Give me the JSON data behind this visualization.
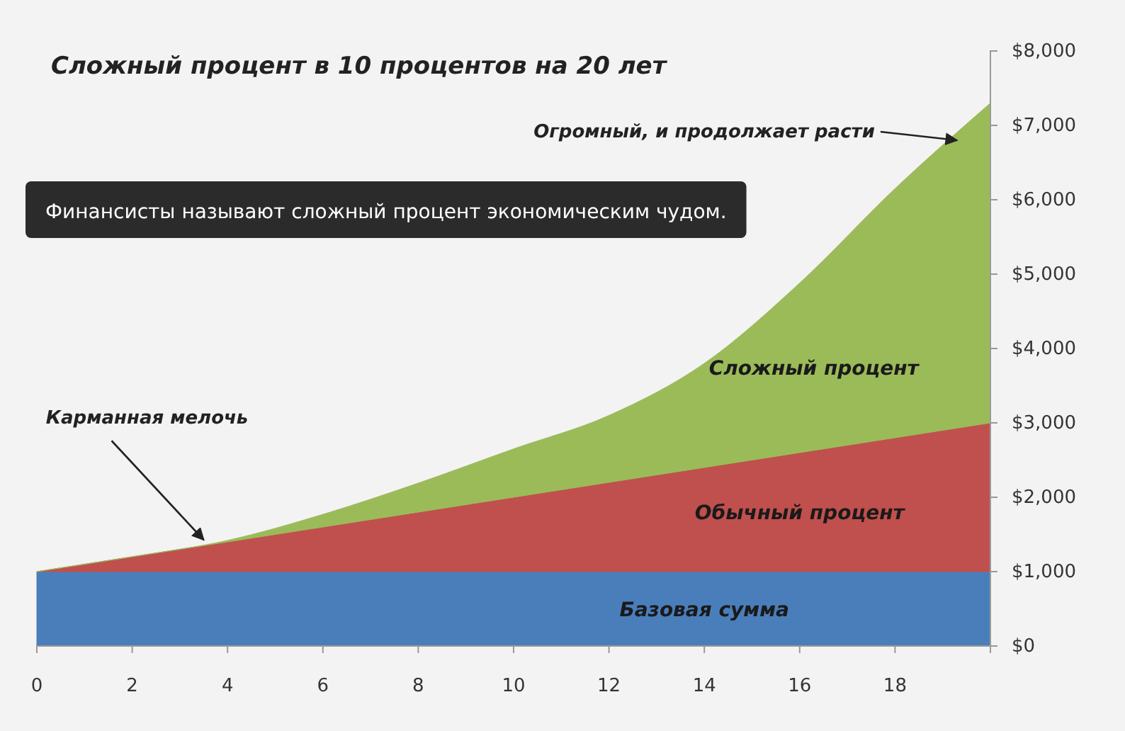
{
  "chart_data": {
    "type": "area",
    "stacked": true,
    "title": "Сложный процент в 10 процентов на 20 лет",
    "x": [
      0,
      2,
      4,
      6,
      8,
      10,
      12,
      14,
      16,
      18,
      20
    ],
    "series": [
      {
        "name": "Базовая сумма",
        "color": "#4a7ebb",
        "values": [
          1000,
          1000,
          1000,
          1000,
          1000,
          1000,
          1000,
          1000,
          1000,
          1000,
          1000
        ]
      },
      {
        "name": "Обычный процент",
        "color": "#c0504d",
        "values": [
          0,
          200,
          400,
          600,
          800,
          1000,
          1200,
          1400,
          1600,
          1800,
          2000
        ]
      },
      {
        "name": "Сложный процент",
        "color": "#9bbb59",
        "values": [
          0,
          0,
          20,
          170,
          390,
          650,
          900,
          1400,
          2280,
          3350,
          4300
        ]
      }
    ],
    "xlim": [
      0,
      20
    ],
    "xticks": [
      0,
      2,
      4,
      6,
      8,
      10,
      12,
      14,
      16,
      18
    ],
    "ylim": [
      0,
      8000
    ],
    "yticks": [
      {
        "value": 0,
        "label": "$0"
      },
      {
        "value": 1000,
        "label": "$1,000"
      },
      {
        "value": 2000,
        "label": "$2,000"
      },
      {
        "value": 3000,
        "label": "$3,000"
      },
      {
        "value": 4000,
        "label": "$4,000"
      },
      {
        "value": 5000,
        "label": "$5,000"
      },
      {
        "value": 6000,
        "label": "$6,000"
      },
      {
        "value": 7000,
        "label": "$7,000"
      },
      {
        "value": 8000,
        "label": "$8,000"
      }
    ],
    "annotations": [
      {
        "text": "Карманная мелочь",
        "x": 3.5,
        "y": 1350
      },
      {
        "text": "Огромный, и продолжает расти",
        "x": 19.3,
        "y": 6800
      },
      "Финансисты называют сложный процент экономическим чудом."
    ]
  }
}
